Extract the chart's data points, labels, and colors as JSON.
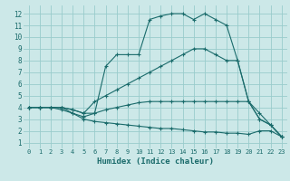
{
  "xlabel": "Humidex (Indice chaleur)",
  "background_color": "#cce8e8",
  "grid_color": "#99cccc",
  "line_color": "#1a6b6b",
  "xlim": [
    -0.5,
    23.5
  ],
  "ylim": [
    0.5,
    12.7
  ],
  "xticks": [
    0,
    1,
    2,
    3,
    4,
    5,
    6,
    7,
    8,
    9,
    10,
    11,
    12,
    13,
    14,
    15,
    16,
    17,
    18,
    19,
    20,
    21,
    22,
    23
  ],
  "yticks": [
    1,
    2,
    3,
    4,
    5,
    6,
    7,
    8,
    9,
    10,
    11,
    12
  ],
  "lines": [
    {
      "x": [
        0,
        1,
        2,
        3,
        4,
        5,
        6,
        7,
        8,
        9,
        10,
        11,
        12,
        13,
        14,
        15,
        16,
        17,
        18,
        19,
        20,
        21,
        22,
        23
      ],
      "y": [
        4,
        4,
        4,
        4,
        3.5,
        3.2,
        3.5,
        7.5,
        8.5,
        8.5,
        8.5,
        11.5,
        11.8,
        12,
        12,
        11.5,
        12,
        11.5,
        11,
        8,
        4.5,
        3,
        2.5,
        1.5
      ]
    },
    {
      "x": [
        0,
        1,
        2,
        3,
        4,
        5,
        6,
        7,
        8,
        9,
        10,
        11,
        12,
        13,
        14,
        15,
        16,
        17,
        18,
        19,
        20,
        21,
        22,
        23
      ],
      "y": [
        4,
        4,
        4,
        4,
        3.8,
        3.5,
        4.5,
        5,
        5.5,
        6.0,
        6.5,
        7.0,
        7.5,
        8.0,
        8.5,
        9.0,
        9.0,
        8.5,
        8.0,
        8.0,
        4.5,
        3.5,
        2.5,
        1.5
      ]
    },
    {
      "x": [
        0,
        1,
        2,
        3,
        4,
        5,
        6,
        7,
        8,
        9,
        10,
        11,
        12,
        13,
        14,
        15,
        16,
        17,
        18,
        19,
        20,
        21,
        22,
        23
      ],
      "y": [
        4,
        4,
        4,
        4,
        3.8,
        3.5,
        3.5,
        3.8,
        4.0,
        4.2,
        4.4,
        4.5,
        4.5,
        4.5,
        4.5,
        4.5,
        4.5,
        4.5,
        4.5,
        4.5,
        4.5,
        3.0,
        2.5,
        1.5
      ]
    },
    {
      "x": [
        0,
        1,
        2,
        3,
        4,
        5,
        6,
        7,
        8,
        9,
        10,
        11,
        12,
        13,
        14,
        15,
        16,
        17,
        18,
        19,
        20,
        21,
        22,
        23
      ],
      "y": [
        4,
        4,
        4,
        3.8,
        3.5,
        3.0,
        2.8,
        2.7,
        2.6,
        2.5,
        2.4,
        2.3,
        2.2,
        2.2,
        2.1,
        2.0,
        1.9,
        1.9,
        1.8,
        1.8,
        1.7,
        2.0,
        2.0,
        1.5
      ]
    }
  ]
}
